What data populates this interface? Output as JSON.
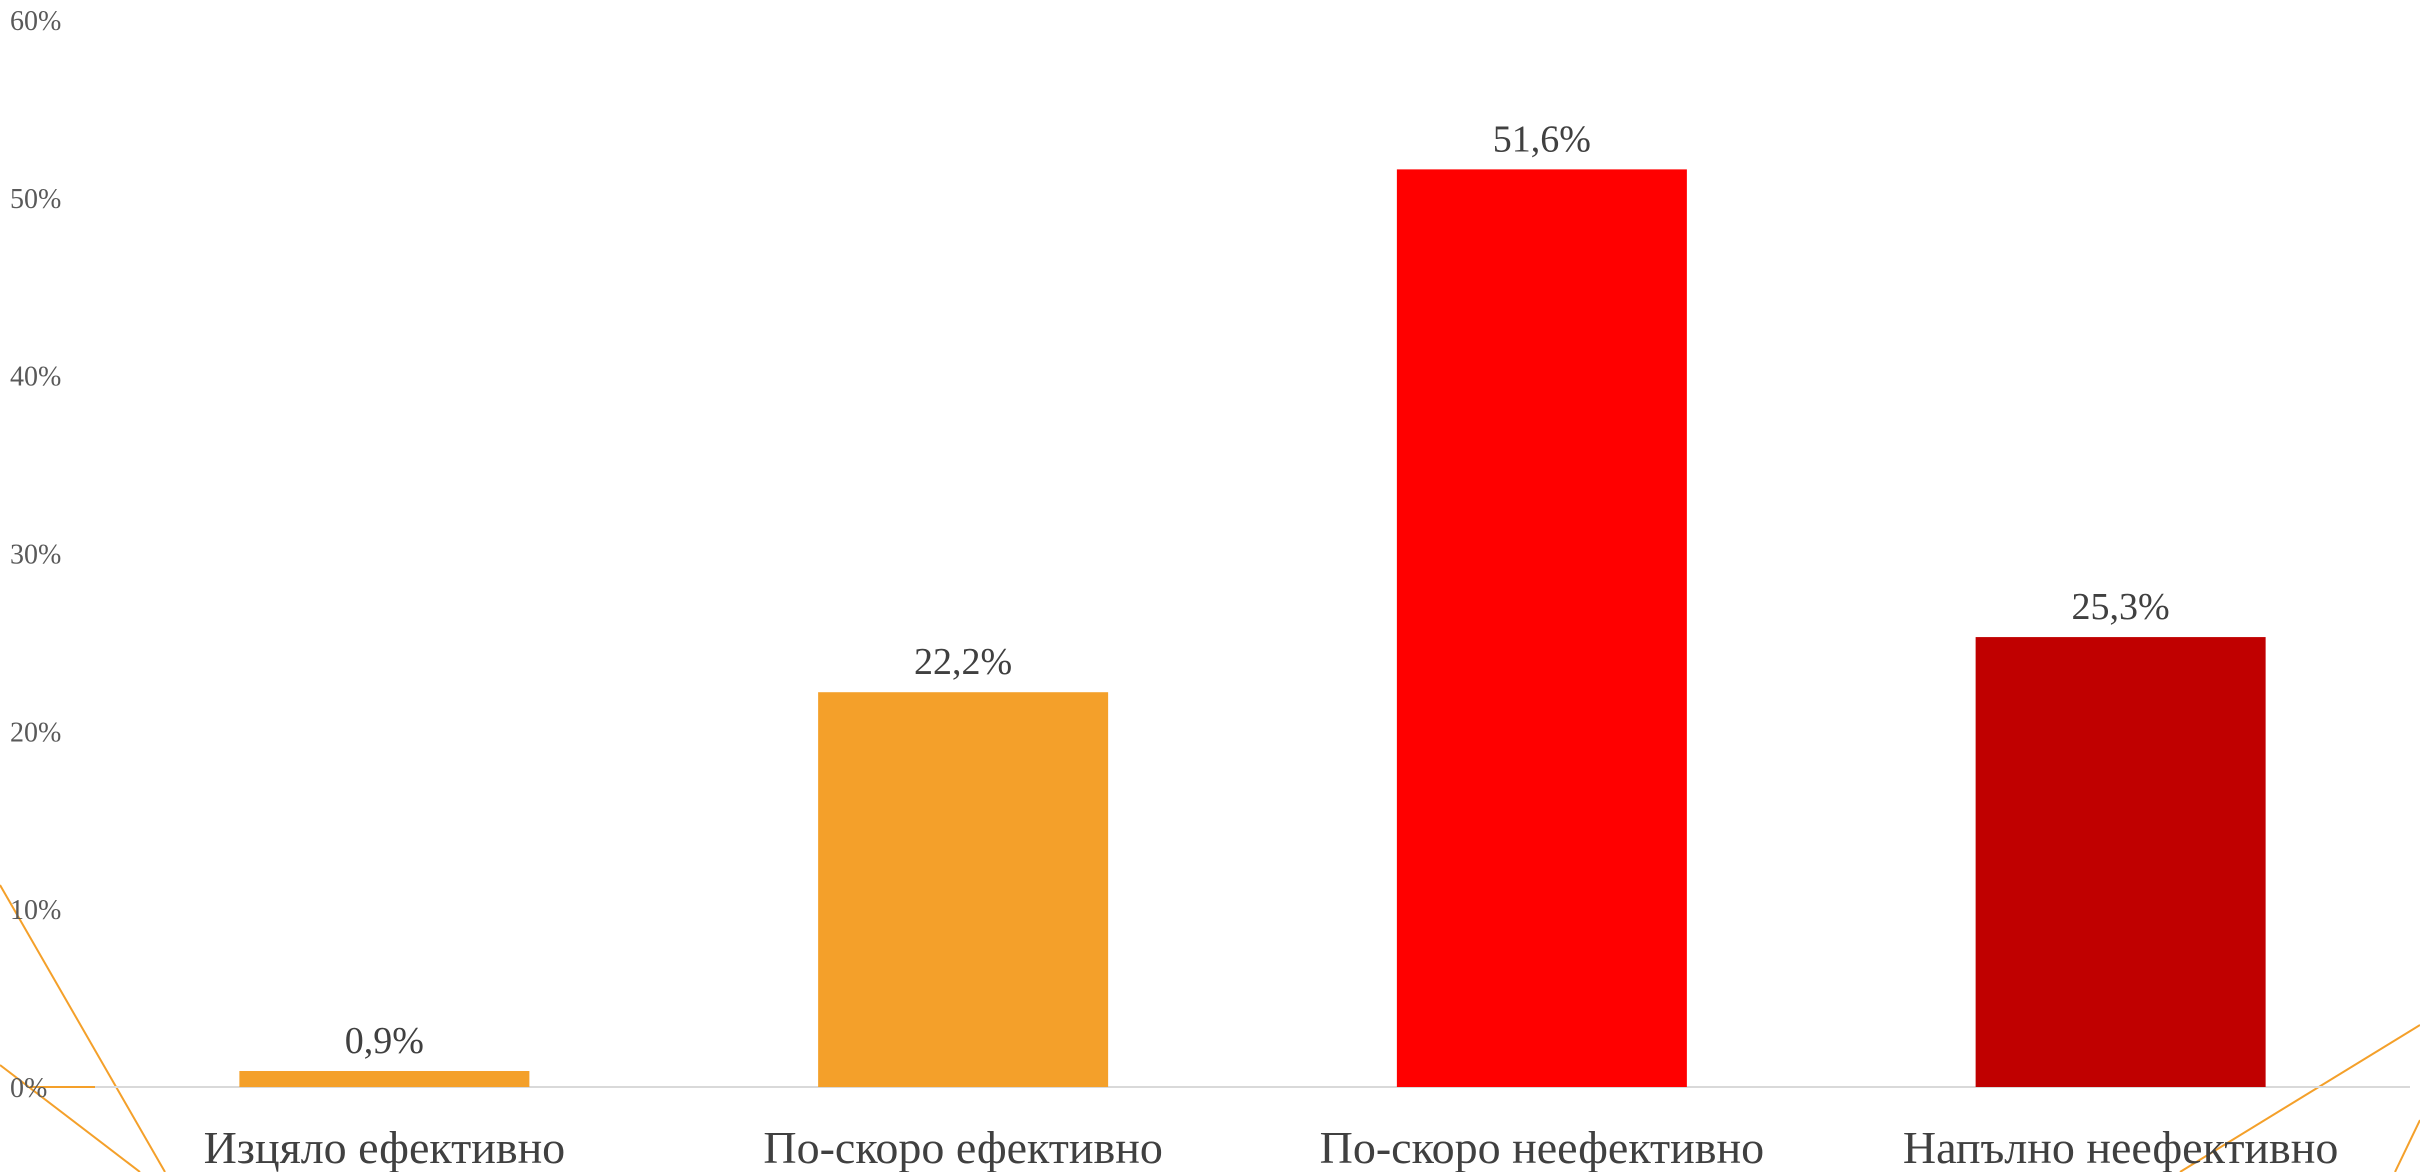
{
  "chart_data": {
    "type": "bar",
    "categories": [
      "Изцяло ефективно",
      "По-скоро ефективно",
      "По-скоро неефективно",
      "Напълно неефективно"
    ],
    "values": [
      0.9,
      22.2,
      51.6,
      25.3
    ],
    "data_labels": [
      "0,9%",
      "22,2%",
      "51,6%",
      "25,3%"
    ],
    "bar_colors": [
      "#F4A02A",
      "#F4A02A",
      "#FF0000",
      "#C00000"
    ],
    "ylim": [
      0,
      60
    ],
    "yticks": [
      0,
      10,
      20,
      30,
      40,
      50,
      60
    ],
    "ytick_labels": [
      "0%",
      "10%",
      "20%",
      "30%",
      "40%",
      "50%",
      "60%"
    ],
    "grid": false,
    "legend": "none",
    "title": "",
    "xlabel": "",
    "ylabel": ""
  },
  "decoration": {
    "line_color": "#F4A02A"
  }
}
